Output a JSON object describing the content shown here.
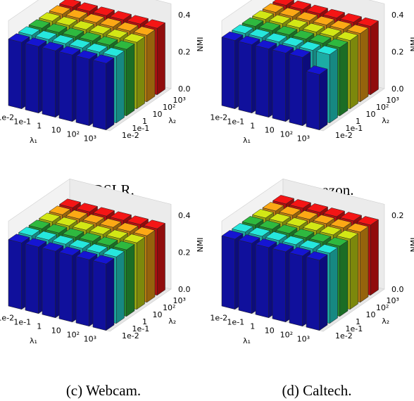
{
  "figure": {
    "x_tick_labels": [
      "1e-2",
      "1e-1",
      "1",
      "10",
      "10²",
      "10³"
    ],
    "y_tick_labels": [
      "1e-2",
      "1e-1",
      "1",
      "10",
      "10²",
      "10³"
    ],
    "xlabel": "λ₁",
    "ylabel": "λ₂",
    "zlabel": "NMI",
    "colors": [
      "#1414c8",
      "#24dcd2",
      "#2cb03c",
      "#c8dc14",
      "#f0a014",
      "#e81414"
    ]
  },
  "chart_data": [
    {
      "type": "bar3d",
      "caption": "(a) DSLR.",
      "xlabel": "λ₁",
      "ylabel": "λ₂",
      "zlabel": "NMI",
      "x": [
        "1e-2",
        "1e-1",
        "1",
        "10",
        "10²",
        "10³"
      ],
      "y": [
        "1e-2",
        "1e-1",
        "1",
        "10",
        "10²",
        "10³"
      ],
      "zlim": [
        0.0,
        0.4
      ],
      "z_ticks": [
        "0.0",
        "0.2",
        "0.4"
      ],
      "values": [
        [
          0.36,
          0.36,
          0.36,
          0.36,
          0.36,
          0.36
        ],
        [
          0.36,
          0.36,
          0.36,
          0.36,
          0.36,
          0.36
        ],
        [
          0.36,
          0.36,
          0.36,
          0.36,
          0.36,
          0.36
        ],
        [
          0.36,
          0.36,
          0.36,
          0.36,
          0.36,
          0.36
        ],
        [
          0.36,
          0.36,
          0.36,
          0.36,
          0.36,
          0.36
        ],
        [
          0.36,
          0.36,
          0.36,
          0.36,
          0.36,
          0.36
        ]
      ]
    },
    {
      "type": "bar3d",
      "caption": "(b) Amazon.",
      "xlabel": "λ₁",
      "ylabel": "λ₂",
      "zlabel": "NMI",
      "x": [
        "1e-2",
        "1e-1",
        "1",
        "10",
        "10²",
        "10³"
      ],
      "y": [
        "1e-2",
        "1e-1",
        "1",
        "10",
        "10²",
        "10³"
      ],
      "zlim": [
        0.0,
        0.4
      ],
      "z_ticks": [
        "0.0",
        "0.2",
        "0.4"
      ],
      "values": [
        [
          0.37,
          0.37,
          0.37,
          0.37,
          0.37,
          0.3
        ],
        [
          0.37,
          0.37,
          0.37,
          0.37,
          0.37,
          0.37
        ],
        [
          0.37,
          0.37,
          0.37,
          0.37,
          0.37,
          0.37
        ],
        [
          0.37,
          0.37,
          0.37,
          0.37,
          0.37,
          0.37
        ],
        [
          0.37,
          0.37,
          0.37,
          0.37,
          0.37,
          0.37
        ],
        [
          0.37,
          0.37,
          0.37,
          0.37,
          0.37,
          0.37
        ]
      ]
    },
    {
      "type": "bar3d",
      "caption": "(c) Webcam.",
      "xlabel": "λ₁",
      "ylabel": "λ₂",
      "zlabel": "NMI",
      "x": [
        "1e-2",
        "1e-1",
        "1",
        "10",
        "10²",
        "10³"
      ],
      "y": [
        "1e-2",
        "1e-1",
        "1",
        "10",
        "10²",
        "10³"
      ],
      "zlim": [
        0.0,
        0.4
      ],
      "z_ticks": [
        "0.0",
        "0.2",
        "0.4"
      ],
      "values": [
        [
          0.36,
          0.36,
          0.36,
          0.36,
          0.36,
          0.36
        ],
        [
          0.36,
          0.36,
          0.36,
          0.36,
          0.36,
          0.36
        ],
        [
          0.36,
          0.36,
          0.36,
          0.36,
          0.36,
          0.36
        ],
        [
          0.36,
          0.36,
          0.36,
          0.36,
          0.36,
          0.36
        ],
        [
          0.36,
          0.36,
          0.36,
          0.36,
          0.36,
          0.36
        ],
        [
          0.36,
          0.36,
          0.36,
          0.36,
          0.36,
          0.36
        ]
      ]
    },
    {
      "type": "bar3d",
      "caption": "(d) Caltech.",
      "xlabel": "λ₁",
      "ylabel": "λ₂",
      "zlabel": "NMI",
      "x": [
        "1e-2",
        "1e-1",
        "1",
        "10",
        "10²",
        "10³"
      ],
      "y": [
        "1e-2",
        "1e-1",
        "1",
        "10",
        "10²",
        "10³"
      ],
      "zlim": [
        0.0,
        0.2
      ],
      "z_ticks": [
        "0.0",
        "0.2"
      ],
      "values": [
        [
          0.19,
          0.19,
          0.19,
          0.19,
          0.19,
          0.19
        ],
        [
          0.19,
          0.19,
          0.19,
          0.19,
          0.19,
          0.19
        ],
        [
          0.19,
          0.19,
          0.19,
          0.19,
          0.19,
          0.19
        ],
        [
          0.19,
          0.19,
          0.19,
          0.19,
          0.19,
          0.19
        ],
        [
          0.19,
          0.19,
          0.19,
          0.19,
          0.19,
          0.19
        ],
        [
          0.19,
          0.19,
          0.19,
          0.19,
          0.19,
          0.19
        ]
      ]
    }
  ]
}
